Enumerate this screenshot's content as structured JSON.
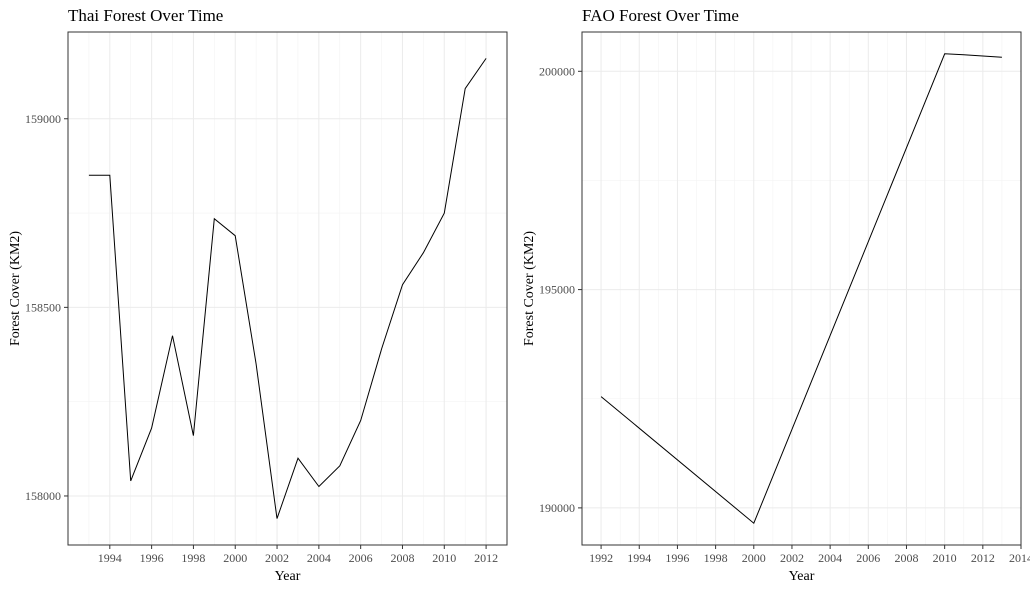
{
  "chart_data": [
    {
      "type": "line",
      "title": "Thai Forest Over Time",
      "xlabel": "Year",
      "ylabel": "Forest Cover (KM2)",
      "xlim": [
        1992,
        2013
      ],
      "ylim": [
        157870,
        159230
      ],
      "x_ticks": [
        1994,
        1996,
        1998,
        2000,
        2002,
        2004,
        2006,
        2008,
        2010,
        2012
      ],
      "y_ticks": [
        158000,
        158500,
        159000
      ],
      "grid": true,
      "series": [
        {
          "x": [
            1993,
            1994,
            1995,
            1996,
            1997,
            1998,
            1999,
            2000,
            2001,
            2002,
            2003,
            2004,
            2005,
            2006,
            2007,
            2008,
            2009,
            2010,
            2011,
            2012
          ],
          "y": [
            158850,
            158850,
            158040,
            158180,
            158425,
            158160,
            158735,
            158690,
            158350,
            157940,
            158100,
            158025,
            158080,
            158200,
            158390,
            158560,
            158645,
            158750,
            159080,
            159160
          ]
        }
      ]
    },
    {
      "type": "line",
      "title": "FAO Forest Over Time",
      "xlabel": "Year",
      "ylabel": "Forest Cover (KM2)",
      "xlim": [
        1991,
        2014
      ],
      "ylim": [
        189150,
        200900
      ],
      "x_ticks": [
        1992,
        1994,
        1996,
        1998,
        2000,
        2002,
        2004,
        2006,
        2008,
        2010,
        2012,
        2014
      ],
      "y_ticks": [
        190000,
        195000,
        200000
      ],
      "grid": true,
      "series": [
        {
          "x": [
            1992,
            2000,
            2010,
            2011,
            2012,
            2013
          ],
          "y": [
            192550,
            189650,
            200400,
            200380,
            200350,
            200320
          ]
        }
      ]
    }
  ]
}
